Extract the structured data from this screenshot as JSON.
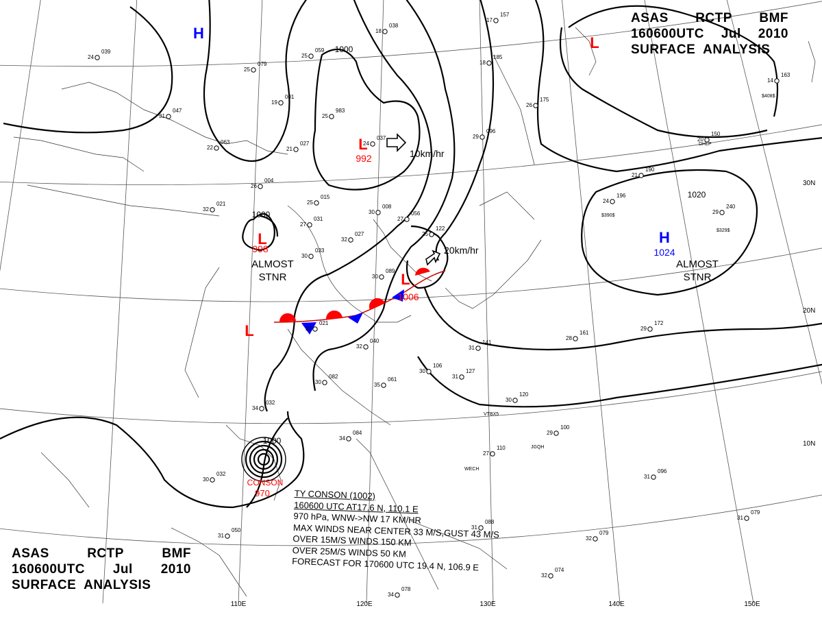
{
  "header_top_right": {
    "line1": [
      "ASAS",
      "RCTP",
      "BMF"
    ],
    "line2": [
      "160600UTC",
      "Jul",
      "2010"
    ],
    "line3": "SURFACE  ANALYSIS"
  },
  "header_bottom_left": {
    "line1": [
      "ASAS",
      "RCTP",
      "BMF"
    ],
    "line2": [
      "160600UTC",
      "Jul",
      "2010"
    ],
    "line3": "SURFACE  ANALYSIS"
  },
  "longitude_labels": [
    "110E",
    "120E",
    "130E",
    "140E",
    "150E"
  ],
  "latitude_labels": [
    "30N",
    "20N",
    "10N"
  ],
  "pressure_systems": [
    {
      "type": "H",
      "color": "#0000ff"
    },
    {
      "type": "L",
      "color": "#ff0000"
    },
    {
      "type": "L",
      "color": "#ff0000",
      "value": "992",
      "movement": "10km/hr"
    },
    {
      "type": "L",
      "color": "#ff0000",
      "value": "998",
      "note": [
        "ALMOST",
        "STNR"
      ]
    },
    {
      "type": "L",
      "color": "#ff0000",
      "value": "1006",
      "movement": "20km/hr"
    },
    {
      "type": "L",
      "color": "#ff0000"
    },
    {
      "type": "H",
      "color": "#0000ff",
      "value": "1024",
      "note": [
        "ALMOST",
        "STNR"
      ]
    }
  ],
  "isobar_labels": [
    "1000",
    "1000",
    "1020",
    "1000"
  ],
  "typhoon": {
    "name": "CONSON",
    "pressure": "970",
    "info": [
      "TY  CONSON  (1002)",
      "160600 UTC  AT17.6 N, 110.1 E",
      "970 hPa, WNW->NW  17 KM/HR",
      "MAX WINDS NEAR CENTER 33 M/S,GUST 43 M/S",
      "OVER 15M/S WINDS  150 KM",
      "OVER 25M/S WINDS  50 KM",
      "FORECAST FOR 170600 UTC 19.4 N, 106.9 E"
    ]
  },
  "station_plots": [
    {
      "t": "24",
      "p": "039"
    },
    {
      "t": "25",
      "p": "059"
    },
    {
      "t": "25",
      "p": "079"
    },
    {
      "t": "19",
      "p": "001"
    },
    {
      "t": "25",
      "p": "983"
    },
    {
      "t": "24",
      "p": "037"
    },
    {
      "t": "31",
      "p": "047"
    },
    {
      "t": "22",
      "p": "063"
    },
    {
      "t": "21",
      "p": "027"
    },
    {
      "t": "26",
      "p": "004"
    },
    {
      "t": "25",
      "p": "015"
    },
    {
      "t": "30",
      "p": "008"
    },
    {
      "t": "27",
      "p": "056"
    },
    {
      "t": "32",
      "p": "021"
    },
    {
      "t": "27",
      "p": "031"
    },
    {
      "t": "32",
      "p": "027"
    },
    {
      "t": "30",
      "p": "033"
    },
    {
      "t": "25",
      "p": "122"
    },
    {
      "t": "30",
      "p": "089"
    },
    {
      "t": "22",
      "p": "021"
    },
    {
      "t": "32",
      "p": "040"
    },
    {
      "t": "30",
      "p": "082"
    },
    {
      "t": "35",
      "p": "061"
    },
    {
      "t": "30",
      "p": "106"
    },
    {
      "t": "31",
      "p": "127"
    },
    {
      "t": "31",
      "p": "141"
    },
    {
      "t": "30",
      "p": "120"
    },
    {
      "t": "28",
      "p": "161"
    },
    {
      "t": "29",
      "p": "172"
    },
    {
      "t": "29",
      "p": "240"
    },
    {
      "t": "24",
      "p": "196"
    },
    {
      "t": "21",
      "p": "190"
    },
    {
      "t": "20",
      "p": "150"
    },
    {
      "t": "14",
      "p": "163"
    },
    {
      "t": "26",
      "p": "175"
    },
    {
      "t": "18",
      "p": "185"
    },
    {
      "t": "29",
      "p": "096"
    },
    {
      "t": "29",
      "p": "100"
    },
    {
      "t": "27",
      "p": "110"
    },
    {
      "t": "31",
      "p": "096"
    },
    {
      "t": "31",
      "p": "079"
    },
    {
      "t": "32",
      "p": "074"
    },
    {
      "t": "32",
      "p": "079"
    },
    {
      "t": "34",
      "p": "084"
    },
    {
      "t": "34",
      "p": "032"
    },
    {
      "t": "30",
      "p": "032"
    },
    {
      "t": "31",
      "p": "050"
    },
    {
      "t": "34",
      "p": "078"
    },
    {
      "t": "31",
      "p": "088"
    },
    {
      "t": "18",
      "p": "038"
    },
    {
      "t": "17",
      "p": "157"
    }
  ],
  "station_codes": [
    "$408$",
    "DHLP",
    "$390$",
    "$329$",
    "VTBX5",
    "JGQH",
    "WECH"
  ]
}
